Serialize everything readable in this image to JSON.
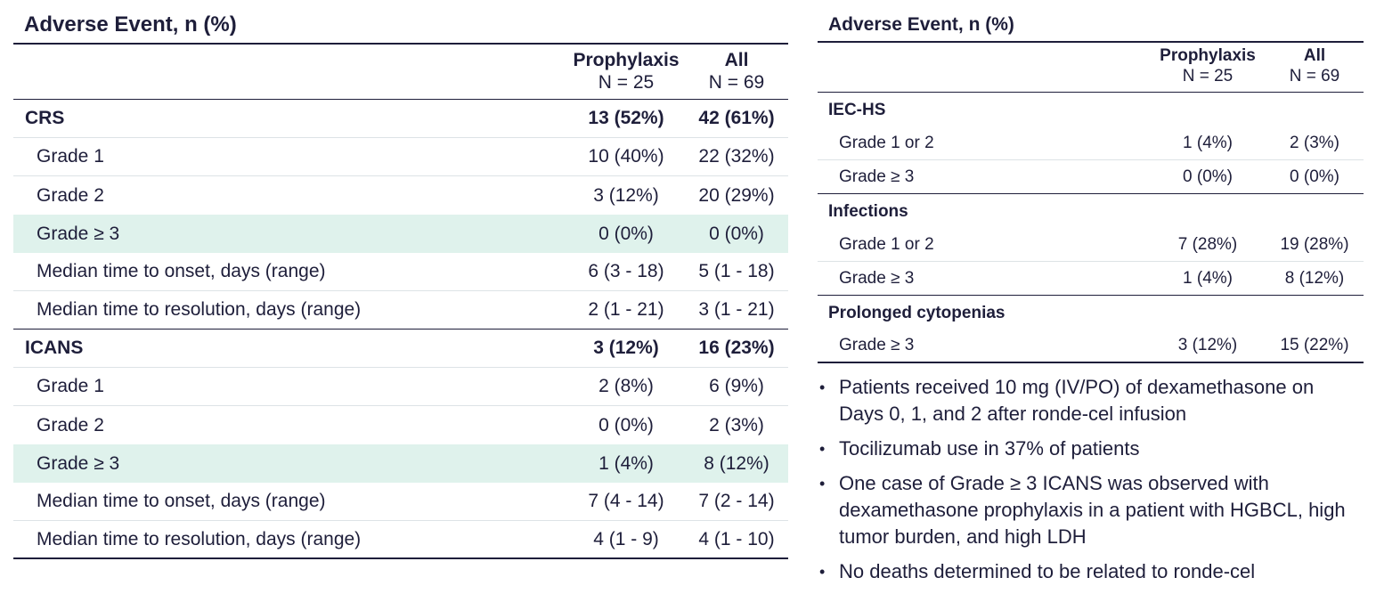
{
  "left": {
    "title": "Adverse Event, n (%)",
    "col_headers": [
      {
        "name": "Prophylaxis",
        "n": "N = 25"
      },
      {
        "name": "All",
        "n": "N = 69"
      }
    ],
    "rows": [
      {
        "label": "CRS",
        "prophylaxis": "13 (52%)",
        "all": "42 (61%)"
      },
      {
        "label": "Grade 1",
        "prophylaxis": "10 (40%)",
        "all": "22 (32%)"
      },
      {
        "label": "Grade 2",
        "prophylaxis": "3 (12%)",
        "all": "20 (29%)"
      },
      {
        "label": "Grade ≥ 3",
        "prophylaxis": "0 (0%)",
        "all": "0 (0%)"
      },
      {
        "label": "Median time to onset, days (range)",
        "prophylaxis": "6 (3 - 18)",
        "all": "5 (1 - 18)"
      },
      {
        "label": "Median time to resolution, days (range)",
        "prophylaxis": "2 (1 - 21)",
        "all": "3 (1 - 21)"
      },
      {
        "label": "ICANS",
        "prophylaxis": "3 (12%)",
        "all": "16 (23%)"
      },
      {
        "label": "Grade 1",
        "prophylaxis": "2 (8%)",
        "all": "6 (9%)"
      },
      {
        "label": "Grade 2",
        "prophylaxis": "0 (0%)",
        "all": "2 (3%)"
      },
      {
        "label": "Grade ≥ 3",
        "prophylaxis": "1 (4%)",
        "all": "8 (12%)"
      },
      {
        "label": "Median time to onset, days (range)",
        "prophylaxis": "7 (4 - 14)",
        "all": "7 (2 - 14)"
      },
      {
        "label": "Median time to resolution, days (range)",
        "prophylaxis": "4 (1 - 9)",
        "all": "4 (1 - 10)"
      }
    ]
  },
  "right": {
    "title": "Adverse Event, n (%)",
    "col_headers": [
      {
        "name": "Prophylaxis",
        "n": "N = 25"
      },
      {
        "name": "All",
        "n": "N = 69"
      }
    ],
    "sections": [
      {
        "title": "IEC-HS",
        "rows": [
          {
            "label": "Grade 1 or 2",
            "prophylaxis": "1 (4%)",
            "all": "2 (3%)"
          },
          {
            "label": "Grade ≥ 3",
            "prophylaxis": "0 (0%)",
            "all": "0 (0%)"
          }
        ]
      },
      {
        "title": "Infections",
        "rows": [
          {
            "label": "Grade 1 or 2",
            "prophylaxis": "7 (28%)",
            "all": "19 (28%)"
          },
          {
            "label": "Grade ≥ 3",
            "prophylaxis": "1 (4%)",
            "all": "8 (12%)"
          }
        ]
      },
      {
        "title": "Prolonged cytopenias",
        "rows": [
          {
            "label": "Grade ≥ 3",
            "prophylaxis": "3 (12%)",
            "all": "15 (22%)"
          }
        ]
      }
    ],
    "bullets": [
      "Patients received 10 mg (IV/PO) of dexamethasone on Days 0, 1, and 2 after ronde-cel infusion",
      "Tocilizumab use in 37% of patients",
      "One case of Grade ≥ 3 ICANS was observed with dexamethasone prophylaxis in a patient with HGBCL, high tumor burden, and high LDH",
      "No deaths determined to be related to ronde-cel"
    ]
  },
  "colors": {
    "text": "#1e1e3a",
    "highlight": "#dff2ec",
    "row_divider": "#dde3e6"
  }
}
